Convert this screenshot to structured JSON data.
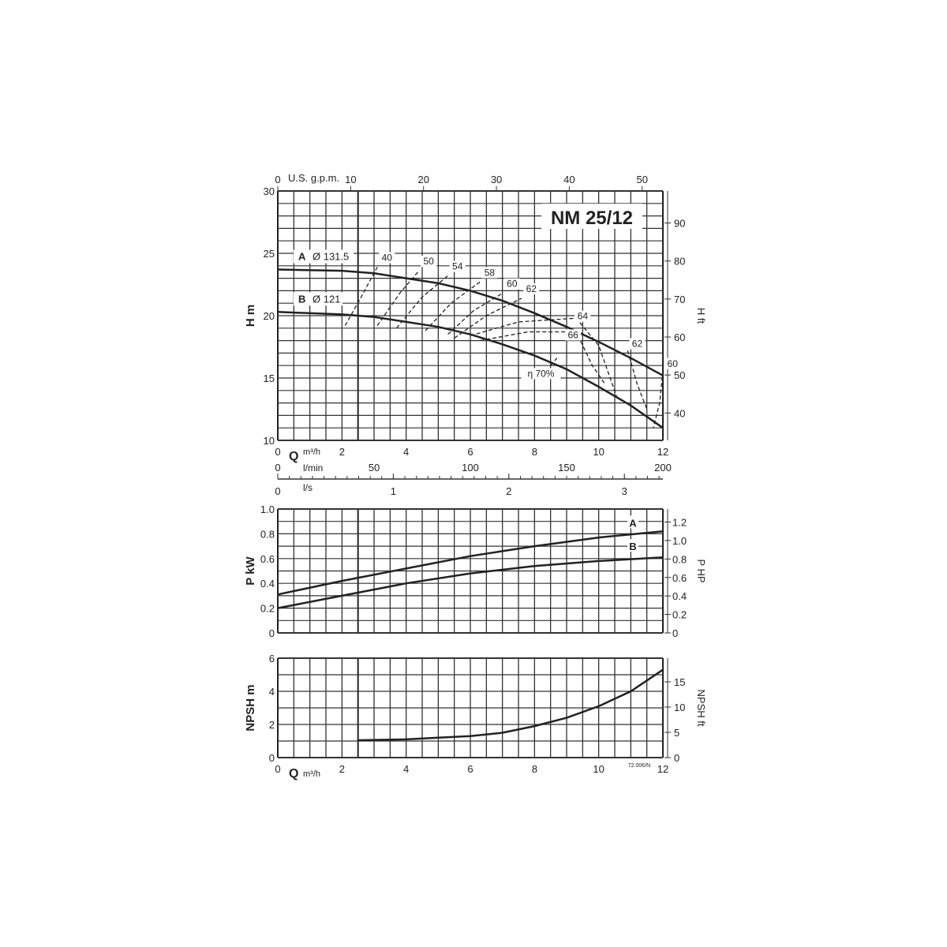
{
  "chart_data": [
    {
      "type": "line",
      "title": "NM 25/12",
      "xlabel": "Q m³/h",
      "ylabel": "H m",
      "y2label": "H ft",
      "xlim": [
        0,
        12
      ],
      "ylim": [
        10,
        30
      ],
      "grid": true,
      "x_ticks": [
        0,
        2,
        4,
        6,
        8,
        10,
        12
      ],
      "y_ticks": [
        10,
        15,
        20,
        25,
        30
      ],
      "y2_ticks": [
        40,
        50,
        60,
        70,
        80,
        90
      ],
      "top_axis": {
        "label": "U.S. g.p.m.",
        "ticks": [
          0,
          10,
          20,
          30,
          40,
          50
        ]
      },
      "bottom_axes": [
        {
          "label": "l/min",
          "ticks": [
            0,
            50,
            100,
            150,
            200
          ]
        },
        {
          "label": "l/s",
          "ticks": [
            0,
            1,
            2,
            3
          ]
        }
      ],
      "series": [
        {
          "name": "A",
          "label": "Ø 131.5",
          "x": [
            0,
            2,
            3,
            4,
            5,
            6,
            7,
            8,
            9,
            10,
            11,
            12
          ],
          "y": [
            23.7,
            23.6,
            23.4,
            23.0,
            22.6,
            22.0,
            21.2,
            20.2,
            19.1,
            17.9,
            16.6,
            15.2
          ]
        },
        {
          "name": "B",
          "label": "Ø 121",
          "x": [
            0,
            2,
            3,
            4,
            5,
            6,
            7,
            8,
            9,
            10,
            11,
            12
          ],
          "y": [
            20.3,
            20.1,
            19.9,
            19.5,
            19.1,
            18.5,
            17.7,
            16.8,
            15.7,
            14.3,
            12.8,
            11.0
          ]
        }
      ],
      "efficiency_curves": [
        {
          "label": "40",
          "points": [
            [
              2.1,
              19.2
            ],
            [
              2.6,
              21.5
            ],
            [
              3.1,
              23.9
            ]
          ]
        },
        {
          "label": "50",
          "points": [
            [
              3.1,
              19.2
            ],
            [
              3.8,
              21.8
            ],
            [
              4.4,
              23.6
            ]
          ]
        },
        {
          "label": "54",
          "points": [
            [
              3.7,
              19.0
            ],
            [
              4.5,
              21.5
            ],
            [
              5.3,
              23.2
            ]
          ]
        },
        {
          "label": "58",
          "points": [
            [
              4.6,
              18.8
            ],
            [
              5.4,
              21.0
            ],
            [
              6.3,
              22.7
            ]
          ]
        },
        {
          "label": "60",
          "points": [
            [
              5.3,
              18.5
            ],
            [
              6.1,
              20.4
            ],
            [
              7.0,
              21.8
            ]
          ]
        },
        {
          "label": "62",
          "points": [
            [
              5.5,
              18.2
            ],
            [
              6.5,
              20.0
            ],
            [
              7.6,
              21.4
            ]
          ]
        },
        {
          "label": "64",
          "points": [
            [
              6.0,
              18.4
            ],
            [
              7.5,
              19.5
            ],
            [
              9.3,
              19.8
            ],
            [
              10.0,
              17.6
            ],
            [
              10.6,
              13.2
            ]
          ]
        },
        {
          "label": "66",
          "points": [
            [
              6.3,
              18.0
            ],
            [
              7.8,
              18.7
            ],
            [
              9.3,
              18.7
            ],
            [
              9.8,
              16.0
            ],
            [
              10.2,
              14.5
            ]
          ]
        },
        {
          "label": "62",
          "points": [
            [
              10.9,
              17.2
            ],
            [
              11.2,
              14.5
            ],
            [
              11.5,
              12.5
            ]
          ]
        },
        {
          "label": "60",
          "points": [
            [
              12.0,
              15.6
            ],
            [
              11.9,
              13.0
            ],
            [
              11.7,
              11.0
            ]
          ]
        },
        {
          "label": "η 70%",
          "points": [
            [
              8.5,
              16.0
            ],
            [
              8.7,
              16.6
            ]
          ]
        }
      ]
    },
    {
      "type": "line",
      "xlabel": "",
      "ylabel": "P kW",
      "y2label": "P HP",
      "xlim": [
        0,
        12
      ],
      "ylim": [
        0,
        1.0
      ],
      "grid": true,
      "y_ticks": [
        "0",
        "0.2",
        "0.4",
        "0.6",
        "0.8",
        "1.0"
      ],
      "y2_ticks": [
        "0",
        "0.2",
        "0.4",
        "0.6",
        "0.8",
        "1.0",
        "1.2"
      ],
      "series": [
        {
          "name": "A",
          "x": [
            0,
            2,
            4,
            6,
            8,
            10,
            12
          ],
          "y": [
            0.31,
            0.42,
            0.52,
            0.62,
            0.7,
            0.77,
            0.82
          ]
        },
        {
          "name": "B",
          "x": [
            0,
            2,
            4,
            6,
            8,
            10,
            12
          ],
          "y": [
            0.2,
            0.3,
            0.4,
            0.48,
            0.54,
            0.58,
            0.61
          ]
        }
      ]
    },
    {
      "type": "line",
      "xlabel": "Q m³/h",
      "ylabel": "NPSH m",
      "y2label": "NPSH ft",
      "xlim": [
        0,
        12
      ],
      "ylim": [
        0,
        6
      ],
      "grid": true,
      "x_ticks": [
        0,
        2,
        4,
        6,
        8,
        10,
        12
      ],
      "y_ticks": [
        0,
        2,
        4,
        6
      ],
      "y2_ticks": [
        0,
        5,
        10,
        15
      ],
      "series": [
        {
          "x": [
            2.5,
            4,
            5,
            6,
            7,
            8,
            9,
            10,
            11,
            12
          ],
          "y": [
            1.05,
            1.1,
            1.2,
            1.3,
            1.5,
            1.9,
            2.4,
            3.1,
            4.0,
            5.3
          ]
        }
      ],
      "annotation": "72.006/N"
    }
  ]
}
